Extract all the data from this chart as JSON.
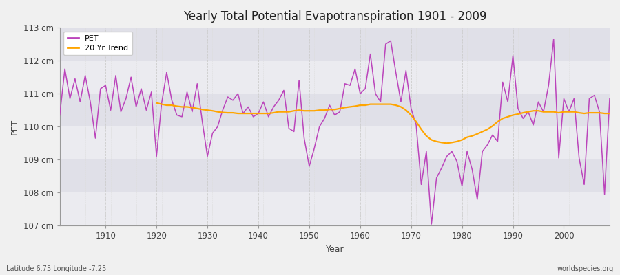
{
  "title": "Yearly Total Potential Evapotranspiration 1901 - 2009",
  "xlabel": "Year",
  "ylabel": "PET",
  "watermark": "worldspecies.org",
  "subtitle_left": "Latitude 6.75 Longitude -7.25",
  "pet_color": "#BB44BB",
  "trend_color": "#FFA500",
  "fig_bg_color": "#F0F0F0",
  "plot_bg_color": "#F4F4F8",
  "band_color_light": "#EBEBF0",
  "band_color_dark": "#E0E0E8",
  "ylim_min": 107,
  "ylim_max": 113,
  "ytick_values": [
    107,
    108,
    109,
    110,
    111,
    112,
    113
  ],
  "ytick_labels": [
    "107 cm",
    "108 cm",
    "109 cm",
    "110 cm",
    "111 cm",
    "112 cm",
    "113 cm"
  ],
  "xtick_values": [
    1910,
    1920,
    1930,
    1940,
    1950,
    1960,
    1970,
    1980,
    1990,
    2000
  ],
  "xlim_min": 1901,
  "xlim_max": 2009,
  "years": [
    1901,
    1902,
    1903,
    1904,
    1905,
    1906,
    1907,
    1908,
    1909,
    1910,
    1911,
    1912,
    1913,
    1914,
    1915,
    1916,
    1917,
    1918,
    1919,
    1920,
    1921,
    1922,
    1923,
    1924,
    1925,
    1926,
    1927,
    1928,
    1929,
    1930,
    1931,
    1932,
    1933,
    1934,
    1935,
    1936,
    1937,
    1938,
    1939,
    1940,
    1941,
    1942,
    1943,
    1944,
    1945,
    1946,
    1947,
    1948,
    1949,
    1950,
    1951,
    1952,
    1953,
    1954,
    1955,
    1956,
    1957,
    1958,
    1959,
    1960,
    1961,
    1962,
    1963,
    1964,
    1965,
    1966,
    1967,
    1968,
    1969,
    1970,
    1971,
    1972,
    1973,
    1974,
    1975,
    1976,
    1977,
    1978,
    1979,
    1980,
    1981,
    1982,
    1983,
    1984,
    1985,
    1986,
    1987,
    1988,
    1989,
    1990,
    1991,
    1992,
    1993,
    1994,
    1995,
    1996,
    1997,
    1998,
    1999,
    2000,
    2001,
    2002,
    2003,
    2004,
    2005,
    2006,
    2007,
    2008,
    2009
  ],
  "pet_values": [
    110.35,
    111.75,
    110.85,
    111.45,
    110.75,
    111.55,
    110.75,
    109.65,
    111.15,
    111.25,
    110.5,
    111.55,
    110.45,
    110.85,
    111.5,
    110.6,
    111.15,
    110.5,
    111.05,
    109.1,
    110.7,
    111.65,
    110.8,
    110.35,
    110.3,
    111.05,
    110.45,
    111.3,
    110.15,
    109.1,
    109.8,
    110.0,
    110.5,
    110.9,
    110.8,
    111.0,
    110.4,
    110.6,
    110.3,
    110.4,
    110.75,
    110.3,
    110.6,
    110.8,
    111.1,
    109.95,
    109.85,
    111.4,
    109.65,
    108.8,
    109.35,
    110.0,
    110.25,
    110.65,
    110.35,
    110.45,
    111.3,
    111.25,
    111.75,
    111.0,
    111.15,
    112.2,
    111.0,
    110.75,
    112.5,
    112.6,
    111.65,
    110.75,
    111.7,
    110.55,
    110.05,
    108.25,
    109.25,
    107.05,
    108.45,
    108.75,
    109.1,
    109.25,
    108.95,
    108.2,
    109.25,
    108.7,
    107.8,
    109.25,
    109.45,
    109.75,
    109.55,
    111.35,
    110.75,
    112.15,
    110.55,
    110.25,
    110.45,
    110.05,
    110.75,
    110.45,
    111.25,
    112.65,
    109.05,
    110.85,
    110.45,
    110.85,
    109.05,
    108.25,
    110.85,
    110.95,
    110.45,
    107.95,
    110.85
  ],
  "trend_values": [
    null,
    null,
    null,
    null,
    null,
    null,
    null,
    null,
    null,
    null,
    null,
    null,
    null,
    null,
    null,
    null,
    null,
    null,
    null,
    110.72,
    110.68,
    110.65,
    110.65,
    110.62,
    110.6,
    110.6,
    110.58,
    110.55,
    110.52,
    110.5,
    110.48,
    110.45,
    110.43,
    110.42,
    110.42,
    110.4,
    110.4,
    110.4,
    110.4,
    110.4,
    110.4,
    110.4,
    110.42,
    110.45,
    110.45,
    110.45,
    110.48,
    110.5,
    110.48,
    110.48,
    110.48,
    110.5,
    110.5,
    110.52,
    110.52,
    110.55,
    110.58,
    110.6,
    110.62,
    110.65,
    110.65,
    110.68,
    110.68,
    110.68,
    110.68,
    110.68,
    110.65,
    110.6,
    110.5,
    110.35,
    110.15,
    109.92,
    109.72,
    109.6,
    109.55,
    109.52,
    109.5,
    109.52,
    109.55,
    109.6,
    109.68,
    109.72,
    109.78,
    109.85,
    109.92,
    110.02,
    110.15,
    110.25,
    110.3,
    110.35,
    110.38,
    110.42,
    110.45,
    110.48,
    110.48,
    110.45,
    110.45,
    110.45,
    110.42,
    110.45,
    110.45,
    110.45,
    110.42,
    110.4,
    110.42,
    110.42,
    110.42,
    110.4,
    110.4
  ]
}
